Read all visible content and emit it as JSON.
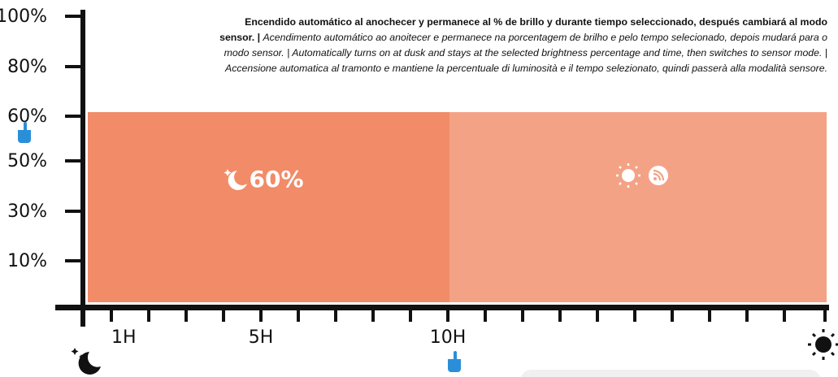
{
  "y_axis": {
    "labels": [
      "100%",
      "80%",
      "60%",
      "50%",
      "30%",
      "10%"
    ]
  },
  "x_axis": {
    "labels": [
      "1H",
      "5H",
      "10H"
    ]
  },
  "level_label": "60%",
  "description": {
    "bold": "Encendido automático al anochecer y permanece al % de brillo y durante tiempo seleccionado, después cambiará al modo sensor. |",
    "italic": "Acendimento automático ao anoitecer e permanece na porcentagem de brilho e pelo tempo selecionado, depois mudará para o modo sensor. | Automatically turns on at dusk and stays at the selected brightness percentage and time, then switches to sensor mode. |  Accensione automatica al tramonto e mantiene la percentuale di luminosità e il tempo selezionato, quindi passerà alla modalità sensore."
  }
}
